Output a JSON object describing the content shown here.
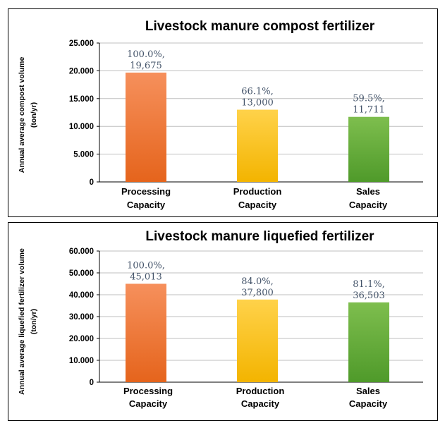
{
  "chart_data": [
    {
      "type": "bar",
      "title": "Livestock manure compost fertilizer",
      "ylabel": "Annual average compost volume",
      "ylabel_unit": "(ton/yr)",
      "categories": [
        [
          "Processing",
          "Capacity"
        ],
        [
          "Production",
          "Capacity"
        ],
        [
          "Sales",
          "Capacity"
        ]
      ],
      "values": [
        19675,
        13000,
        11711
      ],
      "percent_labels": [
        "100.0%,",
        "66.1%,",
        "59.5%,"
      ],
      "value_labels": [
        "19,675",
        "13,000",
        "11,711"
      ],
      "yticks": [
        "0",
        "5.000",
        "10.000",
        "15.000",
        "20.000",
        "25.000"
      ],
      "ylim": [
        0,
        25000
      ],
      "colors": [
        [
          "#f6905c",
          "#e5641c"
        ],
        [
          "#ffd24a",
          "#f3b400"
        ],
        [
          "#7ebe4e",
          "#4f9a2a"
        ]
      ],
      "grid": true,
      "legend": "none"
    },
    {
      "type": "bar",
      "title": "Livestock manure liquefied  fertilizer",
      "ylabel": "Annual average  liquefied fertilizer volume",
      "ylabel_unit": "(ton/yr)",
      "categories": [
        [
          "Processing",
          "Capacity"
        ],
        [
          "Production",
          "Capacity"
        ],
        [
          "Sales",
          "Capacity"
        ]
      ],
      "values": [
        45013,
        37800,
        36503
      ],
      "percent_labels": [
        "100.0%,",
        "84.0%,",
        "81.1%,"
      ],
      "value_labels": [
        "45,013",
        "37,800",
        "36,503"
      ],
      "yticks": [
        "0",
        "10.000",
        "20.000",
        "30.000",
        "40.000",
        "50.000",
        "60.000"
      ],
      "ylim": [
        0,
        60000
      ],
      "colors": [
        [
          "#f6905c",
          "#e5641c"
        ],
        [
          "#ffd24a",
          "#f3b400"
        ],
        [
          "#7ebe4e",
          "#4f9a2a"
        ]
      ],
      "grid": true,
      "legend": "none"
    }
  ]
}
